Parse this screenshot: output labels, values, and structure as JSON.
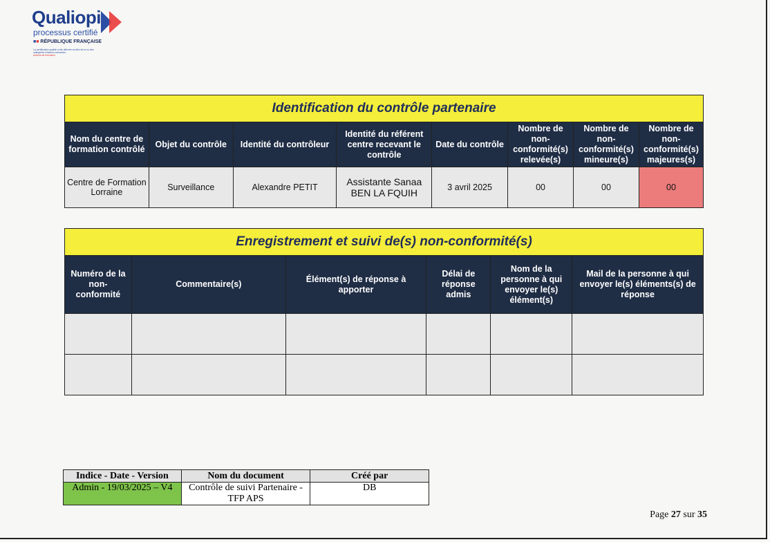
{
  "logo": {
    "brand": "Qualiopi",
    "tagline": "processus certifié",
    "republic": "RÉPUBLIQUE FRANÇAISE",
    "note": "La certification qualité a été délivrée au titre de la ou des catégories d'actions suivantes :",
    "category": "Actions de formation",
    "colors": {
      "blue": "#1f3e8c",
      "red": "#e83a3a"
    }
  },
  "table1": {
    "title": "Identification du contrôle partenaire",
    "headers": [
      "Nom du centre de formation contrôlé",
      "Objet du contrôle",
      "Identité du contrôleur",
      "Identité du référent centre recevant le contrôle",
      "Date du contrôle",
      "Nombre de non-conformité(s) relevée(s)",
      "Nombre de non-conformité(s) mineure(s)",
      "Nombre de non-conformité(s) majeures(s)"
    ],
    "row": [
      "Centre de Formation Lorraine",
      "Surveillance",
      "Alexandre PETIT",
      "Assistante Sanaa BEN LA FQUIH",
      "3 avril 2025",
      "00",
      "00",
      "00"
    ]
  },
  "table2": {
    "title": "Enregistrement et suivi de(s) non-conformité(s)",
    "headers": [
      "Numéro de la non-conformité",
      "Commentaire(s)",
      "Élément(s) de réponse à apporter",
      "Délai de réponse admis",
      "Nom de la personne à qui envoyer le(s) élément(s)",
      "Mail de la personne à qui envoyer le(s) éléments(s) de réponse"
    ]
  },
  "footer": {
    "headers": [
      "Indice - Date - Version",
      "Nom du document",
      "Créé par"
    ],
    "values": [
      "Admin - 19/03/2025 – V4",
      "Contrôle de suivi Partenaire - TFP APS",
      "DB"
    ]
  },
  "page": {
    "label_prefix": "Page ",
    "current": "27",
    "label_mid": " sur ",
    "total": "35"
  },
  "colors": {
    "title_yellow": "#f5ee3a",
    "header_navy": "#1f2d45",
    "major_red": "#ec7c7c",
    "version_green": "#7ec34a"
  }
}
